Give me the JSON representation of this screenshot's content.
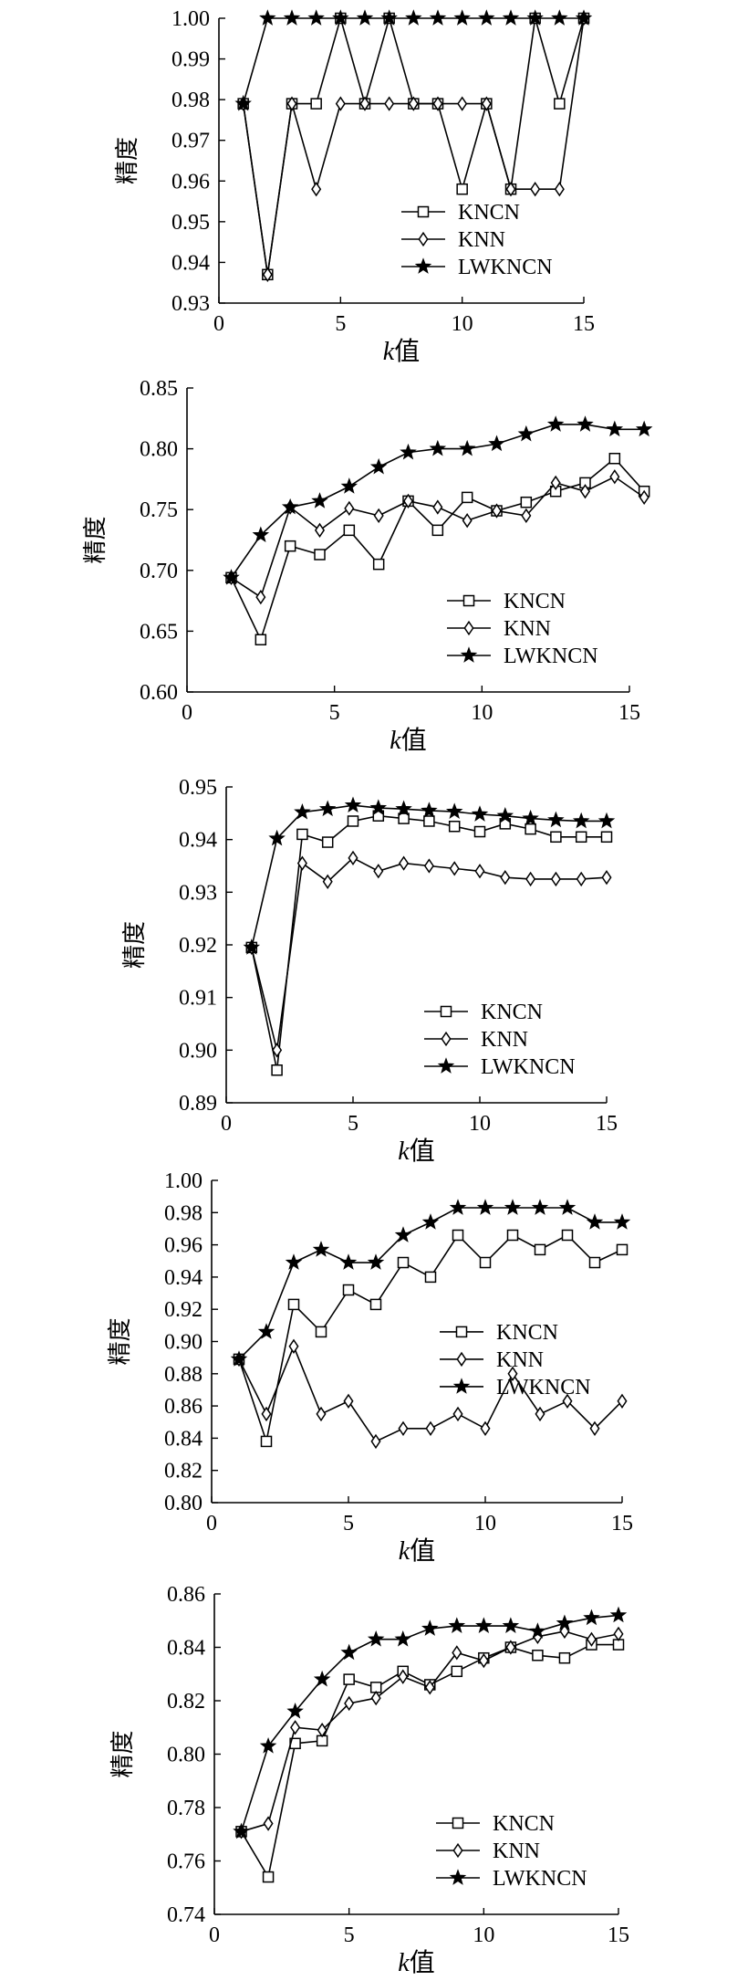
{
  "chart_data": [
    {
      "type": "line",
      "xlabel": "k值",
      "ylabel": "精度",
      "xlim": [
        0,
        15
      ],
      "ylim": [
        0.93,
        1.0
      ],
      "x_ticks": [
        "0",
        "5",
        "10",
        "15"
      ],
      "y_ticks": [
        "0.93",
        "0.94",
        "0.95",
        "0.96",
        "0.97",
        "0.98",
        "0.99",
        "1.00"
      ],
      "legend_position": "bottom-right",
      "x": [
        1,
        2,
        3,
        4,
        5,
        6,
        7,
        8,
        9,
        10,
        11,
        12,
        13,
        14,
        15
      ],
      "series": [
        {
          "name": "KNCN",
          "marker": "square",
          "values": [
            0.979,
            0.937,
            0.979,
            0.979,
            1.0,
            0.979,
            1.0,
            0.979,
            0.979,
            0.958,
            0.979,
            0.958,
            1.0,
            0.979,
            1.0
          ]
        },
        {
          "name": "KNN",
          "marker": "diamond",
          "values": [
            0.979,
            0.937,
            0.979,
            0.958,
            0.979,
            0.979,
            0.979,
            0.979,
            0.979,
            0.979,
            0.979,
            0.958,
            0.958,
            0.958,
            1.0
          ]
        },
        {
          "name": "LWKNCN",
          "marker": "star",
          "values": [
            0.979,
            1.0,
            1.0,
            1.0,
            1.0,
            1.0,
            1.0,
            1.0,
            1.0,
            1.0,
            1.0,
            1.0,
            1.0,
            1.0,
            1.0
          ]
        }
      ]
    },
    {
      "type": "line",
      "xlabel": "k值",
      "ylabel": "精度",
      "xlim": [
        0,
        15
      ],
      "ylim": [
        0.6,
        0.85
      ],
      "x_ticks": [
        "0",
        "5",
        "10",
        "15"
      ],
      "y_ticks": [
        "0.60",
        "0.65",
        "0.70",
        "0.75",
        "0.80",
        "0.85"
      ],
      "legend_position": "bottom-right",
      "x": [
        1.5,
        2.5,
        3.5,
        4.5,
        5.5,
        6.5,
        7.5,
        8.5,
        9.5,
        10.5,
        11.5,
        12.5,
        13.5,
        14.5,
        15.5
      ],
      "series": [
        {
          "name": "KNCN",
          "marker": "square",
          "values": [
            0.694,
            0.643,
            0.72,
            0.713,
            0.733,
            0.705,
            0.757,
            0.733,
            0.76,
            0.749,
            0.756,
            0.765,
            0.772,
            0.792,
            0.765
          ]
        },
        {
          "name": "KNN",
          "marker": "diamond",
          "values": [
            0.694,
            0.678,
            0.752,
            0.733,
            0.751,
            0.745,
            0.757,
            0.752,
            0.741,
            0.749,
            0.745,
            0.772,
            0.765,
            0.777,
            0.76
          ]
        },
        {
          "name": "LWKNCN",
          "marker": "star",
          "values": [
            0.694,
            0.729,
            0.752,
            0.757,
            0.769,
            0.785,
            0.797,
            0.8,
            0.8,
            0.804,
            0.812,
            0.82,
            0.82,
            0.816,
            0.816
          ]
        }
      ]
    },
    {
      "type": "line",
      "xlabel": "k值",
      "ylabel": "精度",
      "xlim": [
        0,
        15
      ],
      "ylim": [
        0.89,
        0.95
      ],
      "x_ticks": [
        "0",
        "5",
        "10",
        "15"
      ],
      "y_ticks": [
        "0.89",
        "0.90",
        "0.91",
        "0.92",
        "0.93",
        "0.94",
        "0.95"
      ],
      "legend_position": "bottom-right",
      "x": [
        1,
        2,
        3,
        4,
        5,
        6,
        7,
        8,
        9,
        10,
        11,
        12,
        13,
        14,
        15
      ],
      "series": [
        {
          "name": "KNCN",
          "marker": "square",
          "values": [
            0.9195,
            0.8962,
            0.941,
            0.9395,
            0.9435,
            0.9445,
            0.944,
            0.9435,
            0.9425,
            0.9415,
            0.943,
            0.942,
            0.9405,
            0.9405,
            0.9405
          ]
        },
        {
          "name": "KNN",
          "marker": "diamond",
          "values": [
            0.9195,
            0.9,
            0.9355,
            0.932,
            0.9365,
            0.934,
            0.9355,
            0.935,
            0.9345,
            0.934,
            0.9328,
            0.9325,
            0.9325,
            0.9325,
            0.9328
          ]
        },
        {
          "name": "LWKNCN",
          "marker": "star",
          "values": [
            0.9195,
            0.9402,
            0.9452,
            0.9458,
            0.9465,
            0.946,
            0.9458,
            0.9455,
            0.9453,
            0.9448,
            0.9445,
            0.944,
            0.9437,
            0.9435,
            0.9435
          ]
        }
      ]
    },
    {
      "type": "line",
      "xlabel": "k值",
      "ylabel": "精度",
      "xlim": [
        0,
        15
      ],
      "ylim": [
        0.8,
        1.0
      ],
      "x_ticks": [
        "0",
        "5",
        "10",
        "15"
      ],
      "y_ticks": [
        "0.80",
        "0.82",
        "0.84",
        "0.86",
        "0.88",
        "0.90",
        "0.92",
        "0.94",
        "0.96",
        "0.98",
        "1.00"
      ],
      "legend_position": "center-right",
      "x": [
        1,
        2,
        3,
        4,
        5,
        6,
        7,
        8,
        9,
        10,
        11,
        12,
        13,
        14,
        15
      ],
      "series": [
        {
          "name": "KNCN",
          "marker": "square",
          "values": [
            0.889,
            0.838,
            0.923,
            0.906,
            0.932,
            0.923,
            0.949,
            0.94,
            0.966,
            0.949,
            0.966,
            0.957,
            0.966,
            0.949,
            0.957
          ]
        },
        {
          "name": "KNN",
          "marker": "diamond",
          "values": [
            0.889,
            0.855,
            0.897,
            0.855,
            0.863,
            0.838,
            0.846,
            0.846,
            0.855,
            0.846,
            0.88,
            0.855,
            0.863,
            0.846,
            0.863
          ]
        },
        {
          "name": "LWKNCN",
          "marker": "star",
          "values": [
            0.889,
            0.906,
            0.949,
            0.957,
            0.949,
            0.949,
            0.966,
            0.974,
            0.983,
            0.983,
            0.983,
            0.983,
            0.983,
            0.974,
            0.974
          ]
        }
      ]
    },
    {
      "type": "line",
      "xlabel": "k值",
      "ylabel": "精度",
      "xlim": [
        0,
        15
      ],
      "ylim": [
        0.74,
        0.86
      ],
      "x_ticks": [
        "0",
        "5",
        "10",
        "15"
      ],
      "y_ticks": [
        "0.74",
        "0.76",
        "0.78",
        "0.80",
        "0.82",
        "0.84",
        "0.86"
      ],
      "legend_position": "bottom-right",
      "x": [
        1,
        2,
        3,
        4,
        5,
        6,
        7,
        8,
        9,
        10,
        11,
        12,
        13,
        14,
        15
      ],
      "series": [
        {
          "name": "KNCN",
          "marker": "square",
          "values": [
            0.771,
            0.754,
            0.804,
            0.805,
            0.828,
            0.825,
            0.831,
            0.826,
            0.831,
            0.836,
            0.84,
            0.837,
            0.836,
            0.841,
            0.841
          ]
        },
        {
          "name": "KNN",
          "marker": "diamond",
          "values": [
            0.771,
            0.774,
            0.81,
            0.809,
            0.819,
            0.821,
            0.829,
            0.825,
            0.838,
            0.835,
            0.84,
            0.844,
            0.846,
            0.843,
            0.845
          ]
        },
        {
          "name": "LWKNCN",
          "marker": "star",
          "values": [
            0.771,
            0.803,
            0.816,
            0.828,
            0.838,
            0.843,
            0.843,
            0.847,
            0.848,
            0.848,
            0.848,
            0.846,
            0.849,
            0.851,
            0.852
          ]
        }
      ]
    }
  ]
}
